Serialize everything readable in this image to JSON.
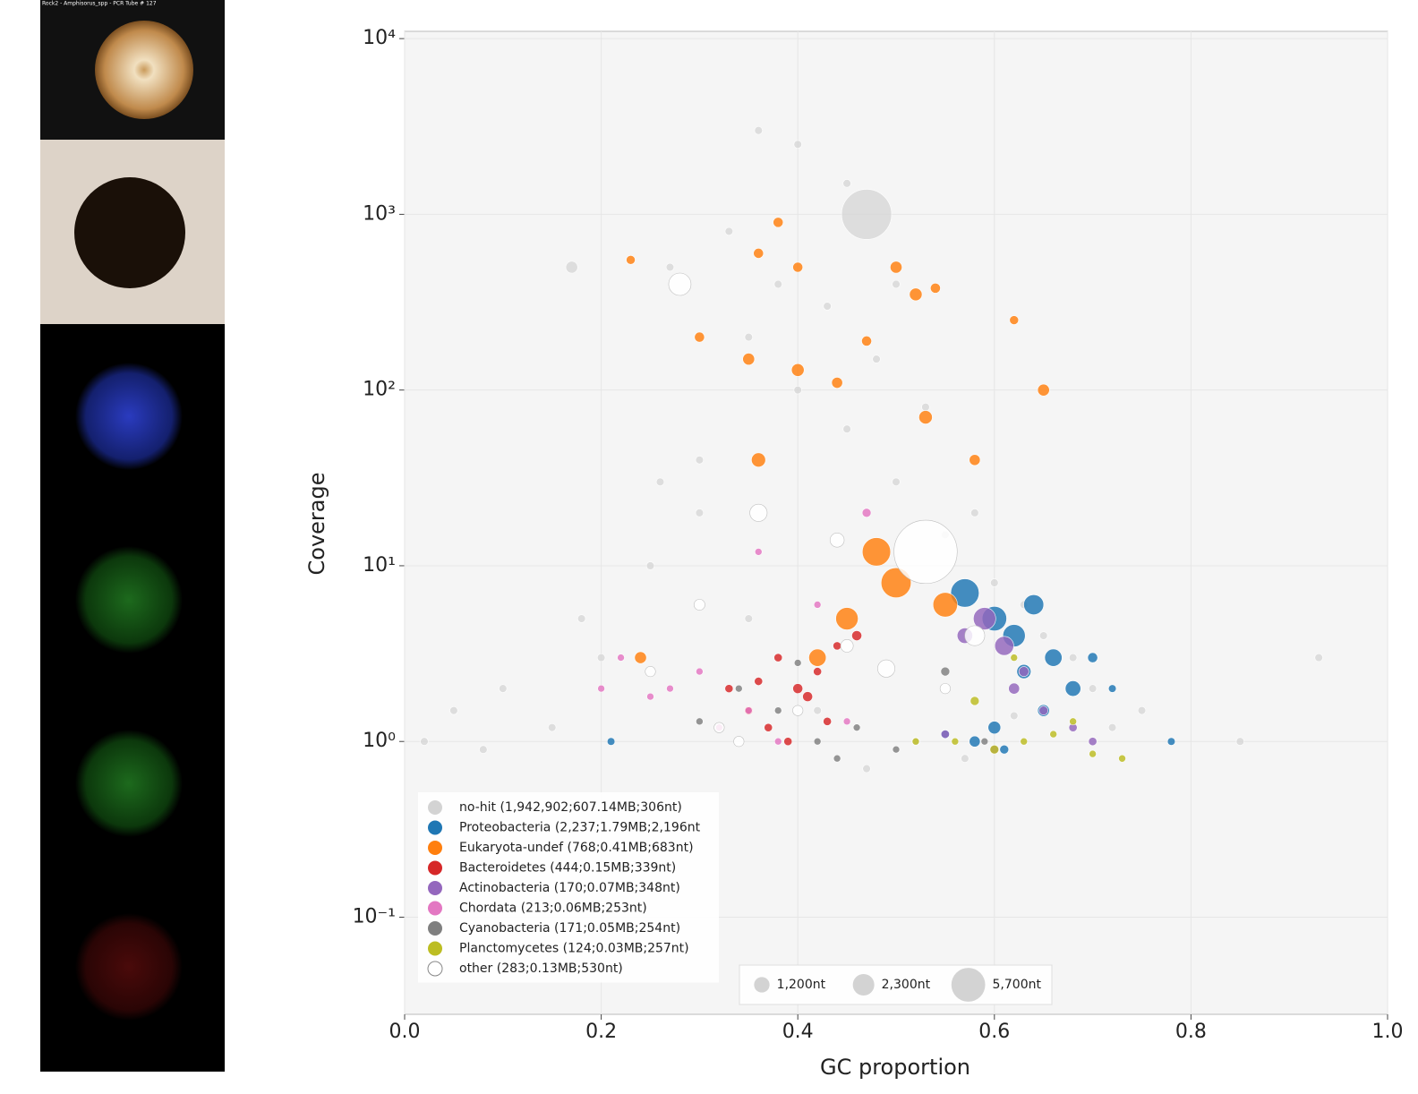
{
  "image_panel": {
    "caption": "Rock2 - Amphisorus_spp - PCR Tube # 127"
  },
  "chart_data": {
    "type": "scatter",
    "x_label": "GC proportion",
    "y_label": "Coverage",
    "xlim": [
      0,
      1
    ],
    "ylim": [
      0.028,
      11000
    ],
    "y_scale": "log",
    "grid": true,
    "legend": "lower left",
    "xticks": [
      {
        "value": 0,
        "label": "0.0"
      },
      0.2,
      0.4,
      0.6,
      0.8,
      {
        "value": 1,
        "label": "1.0"
      }
    ],
    "yticks": [
      {
        "value": 0.1,
        "label": "10⁻¹"
      },
      {
        "value": 1,
        "label": "10⁰"
      },
      {
        "value": 10,
        "label": "10¹"
      },
      {
        "value": 100,
        "label": "10²"
      },
      {
        "value": 1000,
        "label": "10³"
      },
      {
        "value": 10000,
        "label": "10⁴"
      }
    ],
    "size_legend": [
      {
        "value": 1200,
        "label": "1,200nt"
      },
      {
        "value": 2300,
        "label": "2,300nt"
      },
      {
        "value": 5700,
        "label": "5,700nt"
      }
    ],
    "series": [
      {
        "name": "no-hit (1,942,902;607.14MB;306nt)",
        "color": "#d3d3d3",
        "x": [
          0.05,
          0.1,
          0.15,
          0.2,
          0.25,
          0.3,
          0.35,
          0.4,
          0.45,
          0.5,
          0.55,
          0.6,
          0.65,
          0.7,
          0.75,
          0.02,
          0.08,
          0.18,
          0.27,
          0.33,
          0.38,
          0.43,
          0.48,
          0.53,
          0.58,
          0.63,
          0.68,
          0.72,
          0.3,
          0.35,
          0.42,
          0.47,
          0.52,
          0.57,
          0.62,
          0.45,
          0.4,
          0.5,
          0.36,
          0.17,
          0.85,
          0.93,
          0.47,
          0.26
        ],
        "values": [
          1.5,
          2,
          1.2,
          3,
          10,
          40,
          200,
          100,
          60,
          30,
          15,
          8,
          4,
          2,
          1.5,
          1,
          0.9,
          5,
          500,
          800,
          400,
          300,
          150,
          80,
          20,
          6,
          3,
          1.2,
          20,
          5,
          1.5,
          0.7,
          1,
          0.8,
          1.4,
          1500,
          2500,
          400,
          3000,
          500,
          1,
          3,
          1000,
          30
        ],
        "sizes": [
          306,
          306,
          306,
          306,
          306,
          306,
          306,
          306,
          306,
          306,
          306,
          306,
          306,
          306,
          306,
          306,
          306,
          306,
          306,
          306,
          306,
          306,
          306,
          306,
          306,
          306,
          306,
          306,
          306,
          306,
          306,
          306,
          306,
          306,
          306,
          306,
          306,
          306,
          306,
          700,
          306,
          306,
          12500,
          306
        ]
      },
      {
        "name": "Proteobacteria (2,237;1.79MB;2,196nt",
        "color": "#1f77b4",
        "x": [
          0.57,
          0.6,
          0.62,
          0.64,
          0.66,
          0.68,
          0.6,
          0.63,
          0.65,
          0.7,
          0.58,
          0.55,
          0.72,
          0.21,
          0.78,
          0.61
        ],
        "values": [
          7,
          5,
          4,
          6,
          3,
          2,
          1.2,
          2.5,
          1.5,
          3,
          1,
          1.1,
          2,
          1,
          1,
          0.9
        ],
        "sizes": [
          4000,
          3000,
          2500,
          2000,
          1500,
          1200,
          800,
          1000,
          700,
          500,
          600,
          400,
          300,
          300,
          300,
          400
        ]
      },
      {
        "name": "Eukaryota-undef (768;0.41MB;683nt)",
        "color": "#ff7f0e",
        "x": [
          0.38,
          0.36,
          0.4,
          0.23,
          0.3,
          0.35,
          0.4,
          0.44,
          0.5,
          0.52,
          0.54,
          0.65,
          0.58,
          0.53,
          0.48,
          0.5,
          0.45,
          0.42,
          0.24,
          0.62,
          0.36,
          0.47,
          0.55
        ],
        "values": [
          900,
          600,
          500,
          550,
          200,
          150,
          130,
          110,
          500,
          350,
          380,
          100,
          40,
          70,
          12,
          8,
          5,
          3,
          3,
          250,
          40,
          190,
          6
        ],
        "sizes": [
          500,
          500,
          500,
          400,
          500,
          700,
          800,
          600,
          700,
          800,
          500,
          700,
          600,
          900,
          4000,
          4500,
          2500,
          1500,
          700,
          400,
          1000,
          500,
          3000
        ]
      },
      {
        "name": "Bacteroidetes (444;0.15MB;339nt)",
        "color": "#d62728",
        "x": [
          0.38,
          0.4,
          0.42,
          0.35,
          0.37,
          0.41,
          0.44,
          0.39,
          0.33,
          0.43,
          0.36,
          0.46
        ],
        "values": [
          3,
          2,
          2.5,
          1.5,
          1.2,
          1.8,
          3.5,
          1,
          2,
          1.3,
          2.2,
          4
        ],
        "sizes": [
          339,
          500,
          339,
          339,
          339,
          500,
          339,
          339,
          339,
          339,
          339,
          500
        ]
      },
      {
        "name": "Actinobacteria (170;0.07MB;348nt)",
        "color": "#9467bd",
        "x": [
          0.59,
          0.61,
          0.57,
          0.62,
          0.65,
          0.68,
          0.7,
          0.6,
          0.63,
          0.55
        ],
        "values": [
          5,
          3.5,
          4,
          2,
          1.5,
          1.2,
          1,
          0.9,
          2.5,
          1.1
        ],
        "sizes": [
          2500,
          1800,
          1200,
          600,
          400,
          348,
          348,
          348,
          500,
          348
        ]
      },
      {
        "name": "Chordata (213;0.06MB;253nt)",
        "color": "#e377c2",
        "x": [
          0.3,
          0.32,
          0.35,
          0.27,
          0.25,
          0.38,
          0.45,
          0.47,
          0.2,
          0.22,
          0.36,
          0.42
        ],
        "values": [
          2.5,
          1.2,
          1.5,
          2,
          1.8,
          1,
          1.3,
          20,
          2,
          3,
          12,
          6
        ],
        "sizes": [
          253,
          253,
          253,
          253,
          253,
          253,
          253,
          400,
          253,
          253,
          253,
          253
        ]
      },
      {
        "name": "Cyanobacteria (171;0.05MB;254nt)",
        "color": "#7f7f7f",
        "x": [
          0.34,
          0.38,
          0.42,
          0.46,
          0.55,
          0.59,
          0.3,
          0.5,
          0.4,
          0.44
        ],
        "values": [
          2,
          1.5,
          1,
          1.2,
          2.5,
          1,
          1.3,
          0.9,
          2.8,
          0.8
        ],
        "sizes": [
          254,
          254,
          254,
          254,
          400,
          254,
          254,
          254,
          254,
          254
        ]
      },
      {
        "name": "Planctomycetes (124;0.03MB;257nt)",
        "color": "#bcbd22",
        "x": [
          0.56,
          0.6,
          0.63,
          0.66,
          0.7,
          0.73,
          0.58,
          0.52,
          0.68,
          0.62
        ],
        "values": [
          1,
          0.9,
          1,
          1.1,
          0.85,
          0.8,
          1.7,
          1,
          1.3,
          3
        ],
        "sizes": [
          257,
          400,
          257,
          257,
          257,
          257,
          400,
          257,
          257,
          257
        ]
      },
      {
        "name": "other (283;0.13MB;530nt)",
        "color": "#ffffff",
        "x": [
          0.28,
          0.53,
          0.36,
          0.49,
          0.58,
          0.44,
          0.3,
          0.34,
          0.4,
          0.55,
          0.25,
          0.45,
          0.32
        ],
        "values": [
          400,
          12,
          20,
          2.6,
          4,
          14,
          6,
          1,
          1.5,
          2,
          2.5,
          3.5,
          1.2
        ],
        "sizes": [
          2500,
          20000,
          1500,
          1500,
          2000,
          1000,
          600,
          530,
          530,
          530,
          530,
          800,
          530
        ]
      }
    ]
  }
}
